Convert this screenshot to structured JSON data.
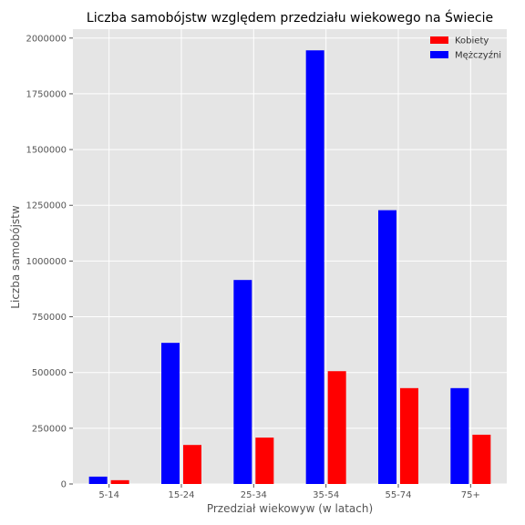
{
  "chart_data": {
    "type": "bar",
    "title": "Liczba samobójstw względem przedziału wiekowego na Świecie",
    "xlabel": "Przedział wiekowyw (w latach)",
    "ylabel": "Liczba samobójstw",
    "categories": [
      "5-14",
      "15-24",
      "25-34",
      "35-54",
      "55-74",
      "75+"
    ],
    "series": [
      {
        "name": "Mężczyźni",
        "color": "#0000ff",
        "values": [
          33000,
          633000,
          915000,
          1945000,
          1228000,
          430000
        ]
      },
      {
        "name": "Kobiety",
        "color": "#ff0000",
        "values": [
          17000,
          175000,
          208000,
          506000,
          430000,
          221000
        ]
      }
    ],
    "legend": {
      "position": "top-right",
      "entries": [
        "Kobiety",
        "Mężczyźni"
      ]
    },
    "yticks": [
      "0",
      "250000",
      "500000",
      "750000",
      "1000000",
      "1250000",
      "1500000",
      "1750000",
      "2000000"
    ],
    "ylim": [
      0,
      2040000
    ],
    "grid": true,
    "background": "#e5e5e5"
  }
}
